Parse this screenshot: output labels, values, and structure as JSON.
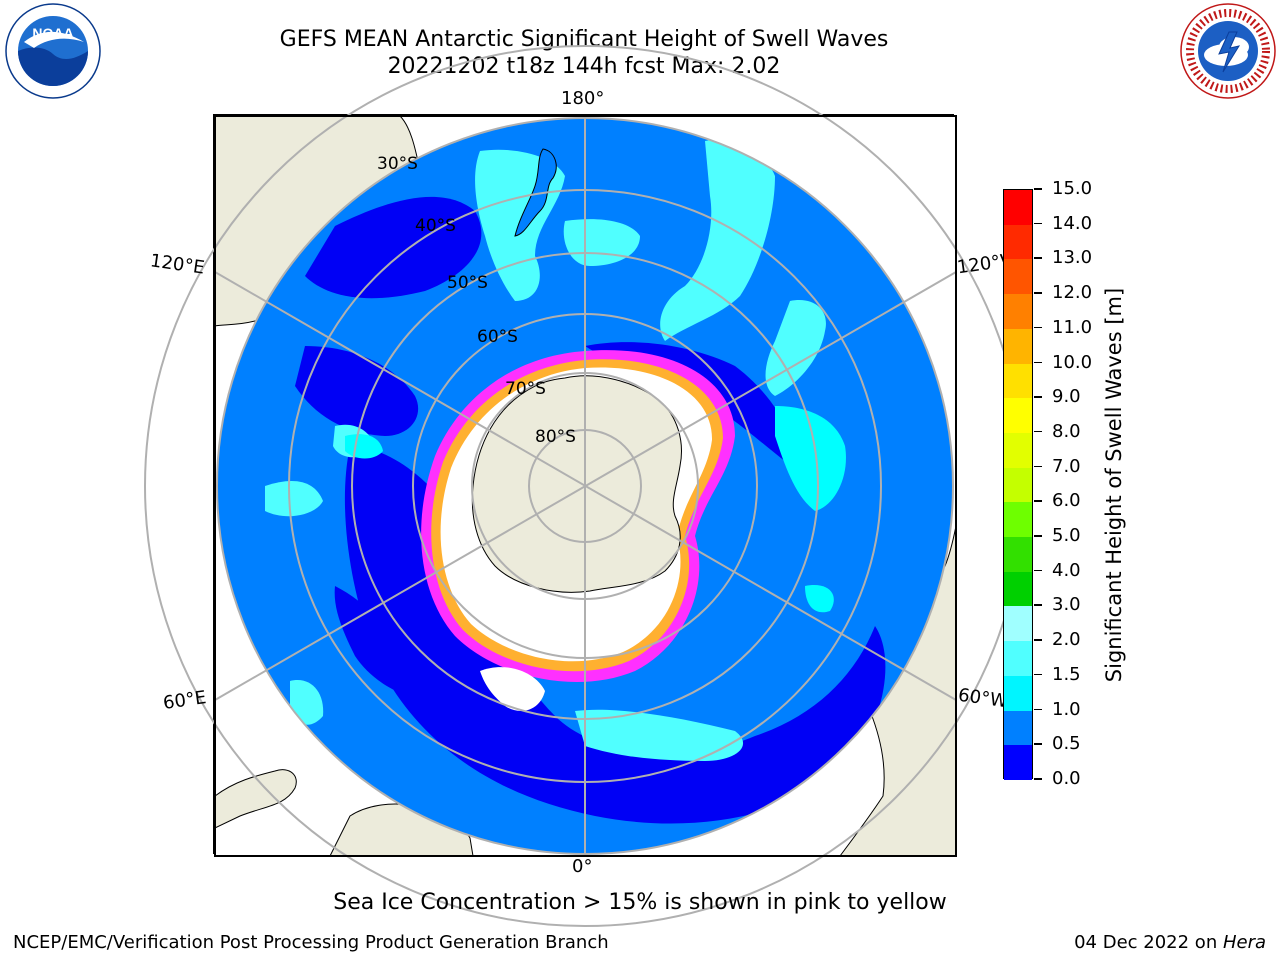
{
  "header": {
    "title_line1": "GEFS MEAN Antarctic Significant Height of Swell Waves",
    "title_line2": "20221202 t18z 144h fcst   Max: 2.02"
  },
  "logos": {
    "noaa_text": "NOAA",
    "nws_text": "NATIONAL WEATHER SERVICE"
  },
  "map": {
    "lon_labels": {
      "top": "180°",
      "bottom": "0°",
      "upper_left": "120°E",
      "upper_right": "120°W",
      "lower_left": "60°E",
      "lower_right": "60°W"
    },
    "lat_labels": [
      "30°S",
      "40°S",
      "50°S",
      "60°S",
      "70°S",
      "80°S"
    ],
    "colors": {
      "land": "#ecebdb",
      "ice": "#ffffff",
      "sea_0_0p5": "#0000f5",
      "sea_0p5_1": "#0080ff",
      "sea_1_1p5": "#00ffff",
      "sea_1p5_2": "#50ffff",
      "ice_edge_pink": "#ff30ff",
      "ice_edge_orange": "#ffb030",
      "grid": "#b0b0b0"
    }
  },
  "colorbar": {
    "title": "Significant Height of Swell Waves [m]",
    "tick_labels": [
      "15.0",
      "14.0",
      "13.0",
      "12.0",
      "11.0",
      "10.0",
      "9.0",
      "8.0",
      "7.0",
      "6.0",
      "5.0",
      "4.0",
      "3.0",
      "2.0",
      "1.5",
      "1.0",
      "0.5",
      "0.0"
    ],
    "segment_colors_top_to_bottom": [
      "#ff0000",
      "#ff2a00",
      "#ff5500",
      "#ff8000",
      "#ff9a00",
      "#ffb400",
      "#ffe000",
      "#ffff00",
      "#e2ff00",
      "#c4ff00",
      "#6eff00",
      "#32e000",
      "#00d000",
      "#50ff80",
      "#a0ffff",
      "#50ffff",
      "#00f5ff",
      "#0080ff",
      "#0000ff"
    ]
  },
  "note": "Sea Ice Concentration > 15% is shown in pink to yellow",
  "footer": {
    "left": "NCEP/EMC/Verification Post Processing Product Generation Branch",
    "right_prefix": "04 Dec 2022 on ",
    "right_italic": "Hera"
  }
}
